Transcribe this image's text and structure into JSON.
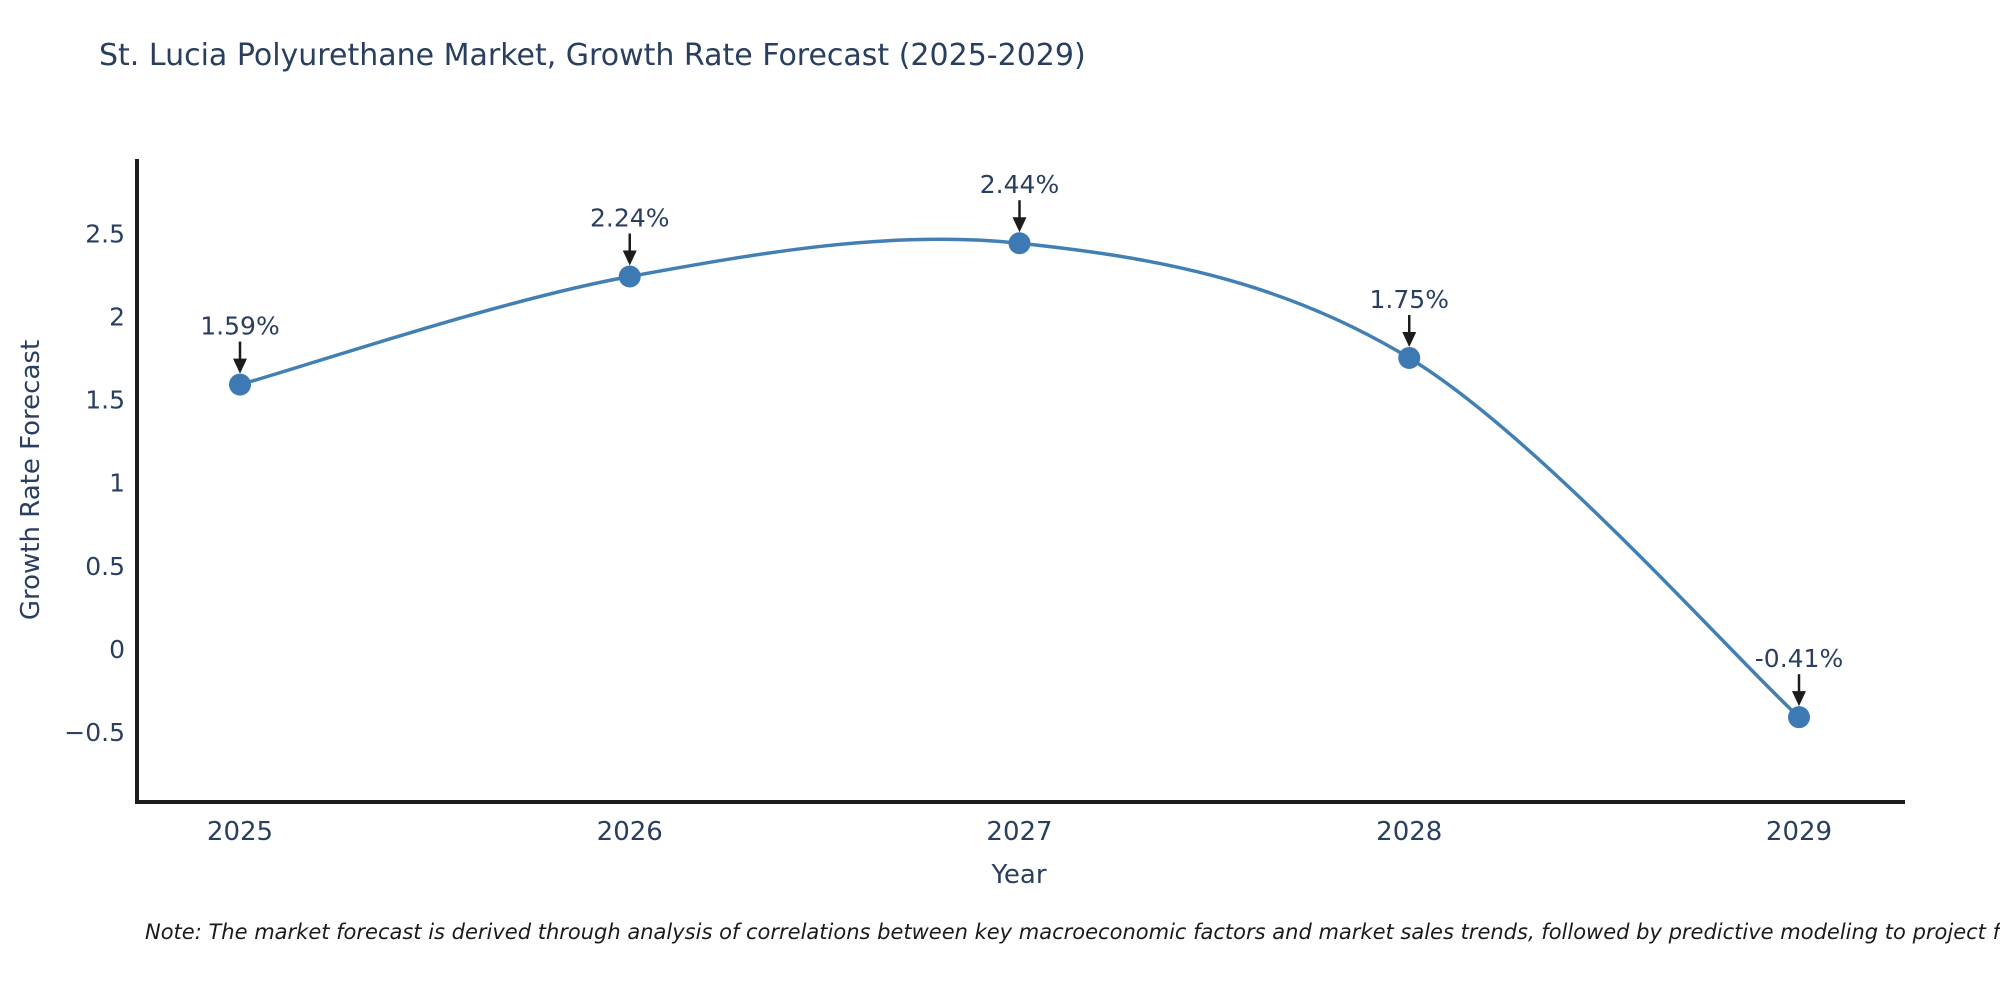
{
  "chart_data": {
    "type": "line",
    "title": "St. Lucia Polyurethane Market, Growth Rate Forecast (2025-2029)",
    "xlabel": "Year",
    "ylabel": "Growth Rate Forecast",
    "x": [
      2025,
      2026,
      2027,
      2028,
      2029
    ],
    "series": [
      {
        "name": "Growth Rate Forecast",
        "values": [
          1.59,
          2.24,
          2.44,
          1.75,
          -0.41
        ],
        "point_labels": [
          "1.59%",
          "2.24%",
          "2.44%",
          "1.75%",
          "-0.41%"
        ]
      }
    ],
    "x_tick_labels": [
      "2025",
      "2026",
      "2027",
      "2028",
      "2029"
    ],
    "y_ticks": [
      2.5,
      2,
      1.5,
      1,
      0.5,
      0,
      -0.5
    ],
    "y_tick_labels": [
      "2.5",
      "2",
      "1.5",
      "1",
      "0.5",
      "0",
      "−0.5"
    ],
    "ylim": [
      -0.92,
      2.95
    ],
    "grid": false,
    "legend_position": "none",
    "line_shape": "spline",
    "annotations_have_arrows": true,
    "colors": {
      "line": "#4280b4",
      "marker": "#3d7ab3",
      "axis": "#1c1c1c",
      "text": "#2a3f5f",
      "arrow": "#1c1c1c"
    }
  },
  "note": {
    "text": "Note: The market forecast is derived through analysis of correlations between key macroeconomic factors and market sales trends, followed by predictive modeling to project future sales."
  }
}
